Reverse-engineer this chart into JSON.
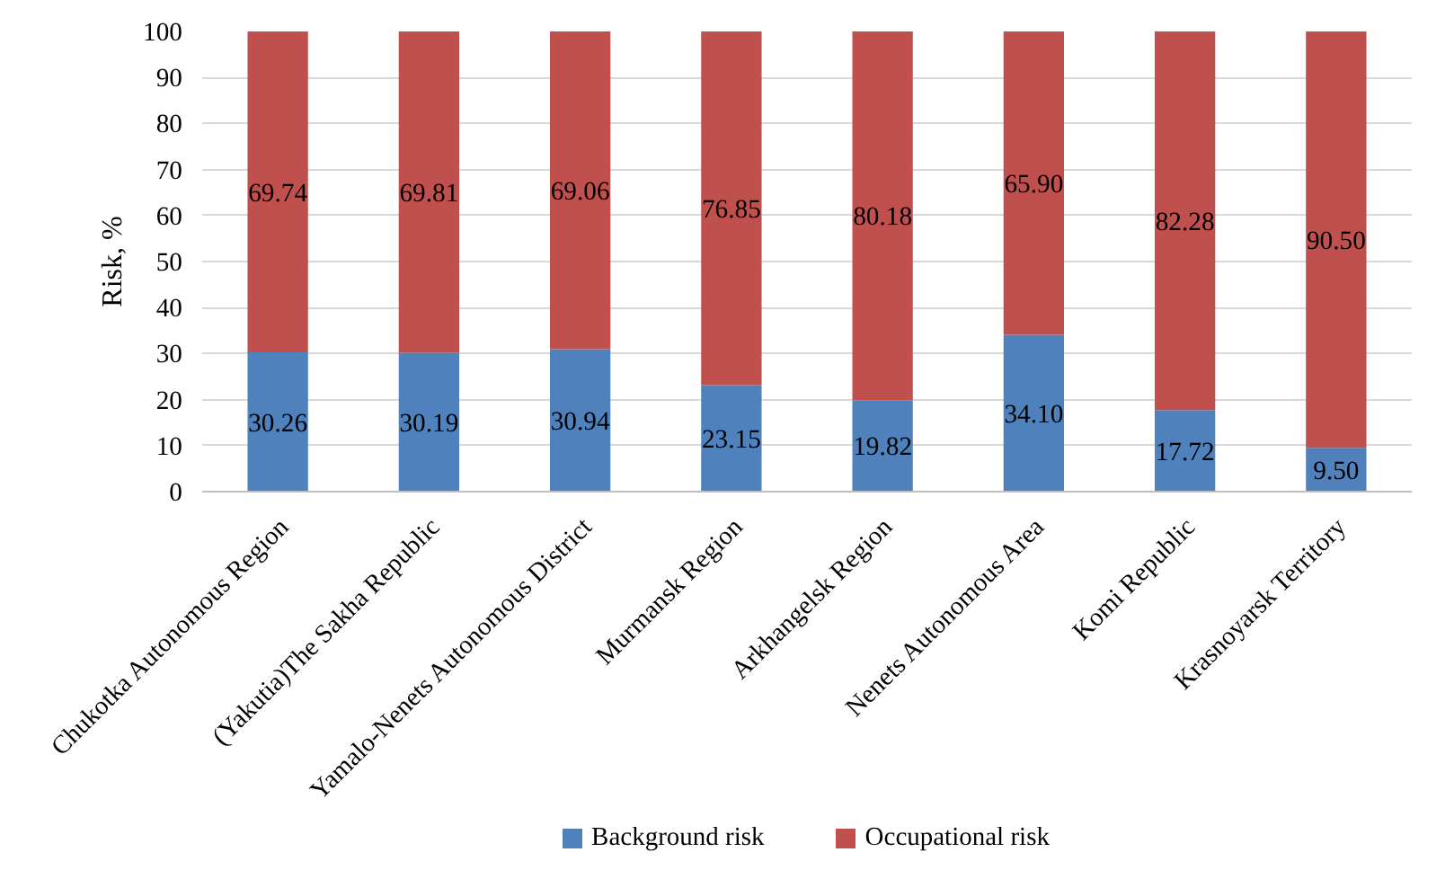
{
  "chart_data": {
    "type": "bar",
    "stacked": true,
    "ylabel": "Risk, %",
    "categories": [
      "Chukotka Autonomous Region",
      "(Yakutia)The Sakha Republic",
      "Yamalo-Nenets Autonomous District",
      "Murmansk Region",
      "Arkhangelsk Region",
      "Nenets Autonomous Area",
      "Komi Republic",
      "Krasnoyarsk Territory"
    ],
    "series": [
      {
        "name": "Background risk",
        "color": "#4f81bd",
        "values": [
          30.26,
          30.19,
          30.94,
          23.15,
          19.82,
          34.1,
          17.72,
          9.5
        ],
        "value_labels": [
          "30.26",
          "30.19",
          "30.94",
          "23.15",
          "19.82",
          "34.10",
          "17.72",
          "9.50"
        ]
      },
      {
        "name": "Occupational risk",
        "color": "#c0504d",
        "values": [
          69.74,
          69.81,
          69.06,
          76.85,
          80.18,
          65.9,
          82.28,
          90.5
        ],
        "value_labels": [
          "69.74",
          "69.81",
          "69.06",
          "76.85",
          "80.18",
          "65.90",
          "82.28",
          "90.50"
        ]
      }
    ],
    "ylim": [
      0,
      100
    ],
    "yticks": [
      0,
      10,
      20,
      30,
      40,
      50,
      60,
      70,
      80,
      90,
      100
    ],
    "grid": "y",
    "legend": "bottom"
  }
}
